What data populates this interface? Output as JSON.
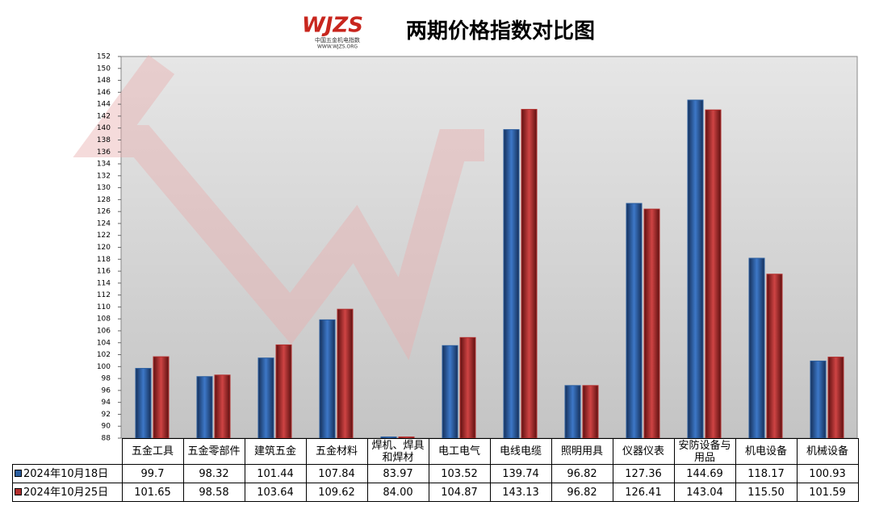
{
  "logo": {
    "text": "WJZS",
    "subtitle": "中国五金机电指数",
    "url": "WWW.WJZS.ORG"
  },
  "chart_data": {
    "type": "bar",
    "title": "两期价格指数对比图",
    "categories": [
      "五金工具",
      "五金零部件",
      "建筑五金",
      "五金材料",
      "焊机、焊具和焊材",
      "电工电气",
      "电线电缆",
      "照明用具",
      "仪器仪表",
      "安防设备与用品",
      "机电设备",
      "机械设备"
    ],
    "series": [
      {
        "name": "2024年10月18日",
        "color": "#2d5f9f",
        "values": [
          99.7,
          98.32,
          101.44,
          107.84,
          83.97,
          103.52,
          139.74,
          96.82,
          127.36,
          144.69,
          118.17,
          100.93
        ],
        "value_labels": [
          "99.7",
          "98.32",
          "101.44",
          "107.84",
          "83.97",
          "103.52",
          "139.74",
          "96.82",
          "127.36",
          "144.69",
          "118.17",
          "100.93"
        ]
      },
      {
        "name": "2024年10月25日",
        "color": "#b3302f",
        "values": [
          101.65,
          98.58,
          103.64,
          109.62,
          84.0,
          104.87,
          143.13,
          96.82,
          126.41,
          143.04,
          115.5,
          101.59
        ],
        "value_labels": [
          "101.65",
          "98.58",
          "103.64",
          "109.62",
          "84.00",
          "104.87",
          "143.13",
          "96.82",
          "126.41",
          "143.04",
          "115.50",
          "101.59"
        ]
      }
    ],
    "ylim": [
      88,
      152
    ],
    "yticks": [
      88,
      90,
      92,
      94,
      96,
      98,
      100,
      102,
      104,
      106,
      108,
      110,
      112,
      114,
      116,
      118,
      120,
      122,
      124,
      126,
      128,
      130,
      132,
      134,
      136,
      138,
      140,
      142,
      144,
      146,
      148,
      150,
      152
    ],
    "grid": false
  }
}
